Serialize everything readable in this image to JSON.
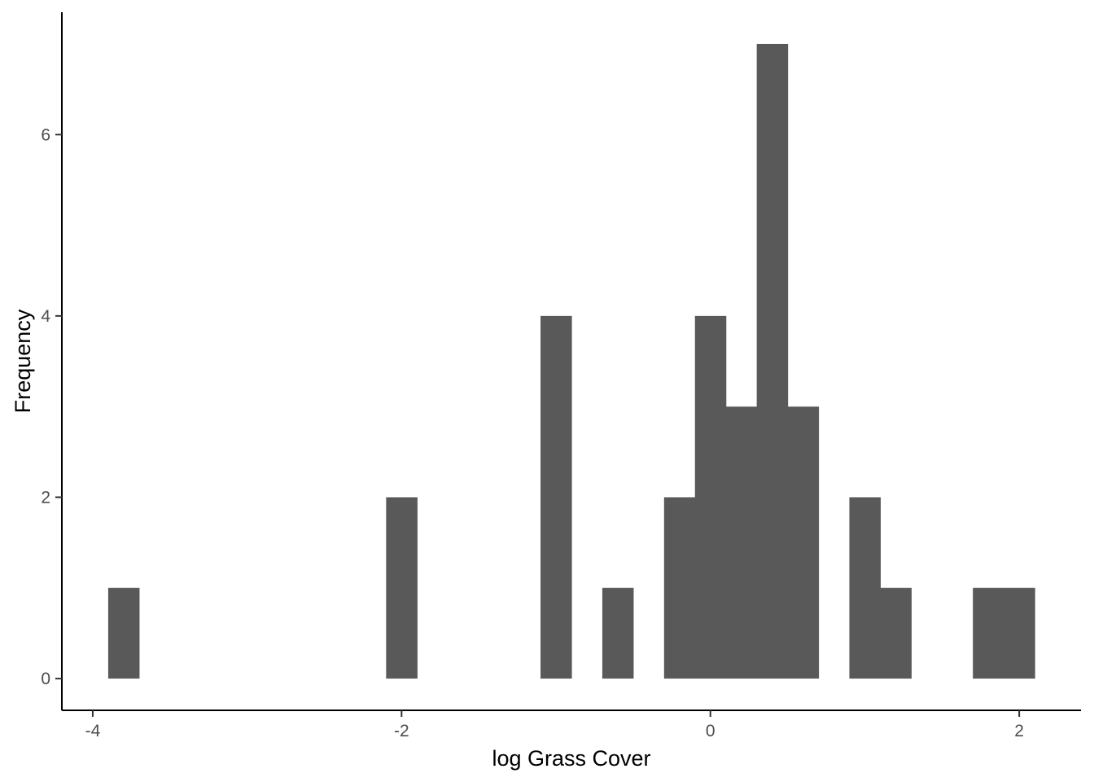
{
  "chart_data": {
    "type": "bar",
    "subtype": "histogram",
    "xlabel": "log Grass Cover",
    "ylabel": "Frequency",
    "bin_width": 0.2,
    "bins": [
      {
        "x_start": -3.9,
        "x_end": -3.7,
        "count": 1
      },
      {
        "x_start": -2.1,
        "x_end": -1.9,
        "count": 2
      },
      {
        "x_start": -1.1,
        "x_end": -0.9,
        "count": 4
      },
      {
        "x_start": -0.7,
        "x_end": -0.5,
        "count": 1
      },
      {
        "x_start": -0.3,
        "x_end": -0.1,
        "count": 2
      },
      {
        "x_start": -0.1,
        "x_end": 0.1,
        "count": 4
      },
      {
        "x_start": 0.1,
        "x_end": 0.3,
        "count": 3
      },
      {
        "x_start": 0.3,
        "x_end": 0.5,
        "count": 7
      },
      {
        "x_start": 0.5,
        "x_end": 0.7,
        "count": 3
      },
      {
        "x_start": 0.9,
        "x_end": 1.1,
        "count": 2
      },
      {
        "x_start": 1.1,
        "x_end": 1.3,
        "count": 1
      },
      {
        "x_start": 1.7,
        "x_end": 1.9,
        "count": 1
      },
      {
        "x_start": 1.9,
        "x_end": 2.1,
        "count": 1
      }
    ],
    "xlim": [
      -4.2,
      2.4
    ],
    "ylim": [
      -0.35,
      7.35
    ],
    "x_ticks": [
      -4,
      -2,
      0,
      2
    ],
    "x_tick_labels": [
      "-4",
      "-2",
      "0",
      "2"
    ],
    "y_ticks": [
      0,
      2,
      4,
      6
    ],
    "y_tick_labels": [
      "0",
      "2",
      "4",
      "6"
    ],
    "bar_color": "#595959",
    "grid": false,
    "legend": "none"
  }
}
